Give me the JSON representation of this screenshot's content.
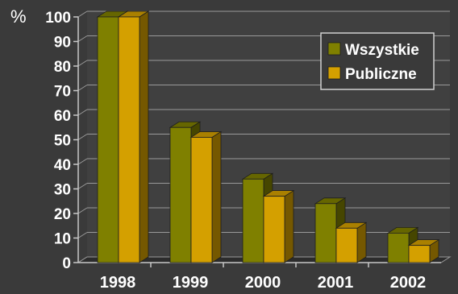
{
  "chart_data": {
    "type": "bar",
    "y_unit": "%",
    "categories": [
      "1998",
      "1999",
      "2000",
      "2001",
      "2002"
    ],
    "series": [
      {
        "name": "Wszystkie",
        "values": [
          100,
          55,
          34,
          24,
          12
        ]
      },
      {
        "name": "Publiczne",
        "values": [
          100,
          51,
          27,
          14,
          7
        ]
      }
    ],
    "ylim": [
      0,
      100
    ],
    "yticks": [
      0,
      10,
      20,
      30,
      40,
      50,
      60,
      70,
      80,
      90,
      100
    ],
    "grid": true,
    "legend_position": "top-right",
    "colors": {
      "Wszystkie": "#7f8000",
      "Publiczne": "#d4a000",
      "background": "#3a3a3a"
    }
  }
}
